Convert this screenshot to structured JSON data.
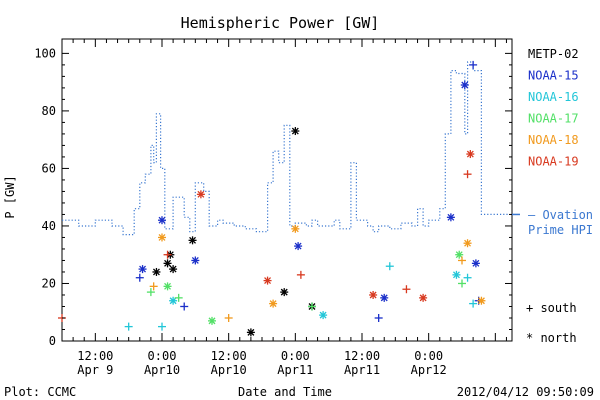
{
  "chart_data": {
    "type": "scatter",
    "title": "Hemispheric Power [GW]",
    "ylabel": "P [GW]",
    "xlabel": "Date and Time",
    "ylim": [
      0,
      105
    ],
    "xlim": [
      "2012-04-09 06:00",
      "2012-04-12 15:00"
    ],
    "yticks": [
      "0",
      "20",
      "40",
      "60",
      "80",
      "100"
    ],
    "xticks": [
      {
        "top": "12:00",
        "bottom": "Apr 9",
        "t": "2012-04-09 12:00"
      },
      {
        "top": "0:00",
        "bottom": "Apr10",
        "t": "2012-04-10 00:00"
      },
      {
        "top": "12:00",
        "bottom": "Apr10",
        "t": "2012-04-10 12:00"
      },
      {
        "top": "0:00",
        "bottom": "Apr11",
        "t": "2012-04-11 00:00"
      },
      {
        "top": "12:00",
        "bottom": "Apr11",
        "t": "2012-04-11 12:00"
      },
      {
        "top": "0:00",
        "bottom": "Apr12",
        "t": "2012-04-12 00:00"
      }
    ],
    "legend_position": "right",
    "legend": [
      {
        "name": "METP-02",
        "color": "#000000"
      },
      {
        "name": "NOAA-15",
        "color": "#1a2fc9"
      },
      {
        "name": "NOAA-16",
        "color": "#22c6d8"
      },
      {
        "name": "NOAA-17",
        "color": "#52e067"
      },
      {
        "name": "NOAA-18",
        "color": "#f19a1e"
      },
      {
        "name": "NOAA-19",
        "color": "#d8391f"
      }
    ],
    "ovation": {
      "label_line1": "– Ovation",
      "label_line2": "Prime HPI",
      "color": "#3b78d0",
      "current_value": 44,
      "steps": [
        [
          "2012-04-09 06:00",
          42
        ],
        [
          "2012-04-09 09:00",
          40
        ],
        [
          "2012-04-09 12:00",
          42
        ],
        [
          "2012-04-09 15:00",
          40
        ],
        [
          "2012-04-09 17:00",
          37
        ],
        [
          "2012-04-09 19:00",
          46
        ],
        [
          "2012-04-09 20:00",
          55
        ],
        [
          "2012-04-09 21:00",
          58
        ],
        [
          "2012-04-09 22:00",
          68
        ],
        [
          "2012-04-09 22:30",
          62
        ],
        [
          "2012-04-09 23:00",
          79
        ],
        [
          "2012-04-09 23:45",
          60
        ],
        [
          "2012-04-10 00:30",
          39
        ],
        [
          "2012-04-10 02:00",
          50
        ],
        [
          "2012-04-10 04:00",
          43
        ],
        [
          "2012-04-10 05:00",
          38
        ],
        [
          "2012-04-10 06:00",
          55
        ],
        [
          "2012-04-10 07:30",
          52
        ],
        [
          "2012-04-10 08:30",
          40
        ],
        [
          "2012-04-10 10:00",
          42
        ],
        [
          "2012-04-10 11:00",
          41
        ],
        [
          "2012-04-10 13:00",
          40
        ],
        [
          "2012-04-10 15:00",
          39
        ],
        [
          "2012-04-10 17:00",
          38
        ],
        [
          "2012-04-10 19:00",
          55
        ],
        [
          "2012-04-10 20:00",
          66
        ],
        [
          "2012-04-10 21:00",
          62
        ],
        [
          "2012-04-10 22:00",
          75
        ],
        [
          "2012-04-10 23:00",
          40
        ],
        [
          "2012-04-11 00:00",
          41
        ],
        [
          "2012-04-11 02:00",
          40
        ],
        [
          "2012-04-11 03:00",
          42
        ],
        [
          "2012-04-11 04:00",
          40
        ],
        [
          "2012-04-11 07:00",
          42
        ],
        [
          "2012-04-11 08:00",
          39
        ],
        [
          "2012-04-11 10:00",
          62
        ],
        [
          "2012-04-11 11:00",
          42
        ],
        [
          "2012-04-11 13:00",
          40
        ],
        [
          "2012-04-11 14:00",
          38
        ],
        [
          "2012-04-11 15:00",
          40
        ],
        [
          "2012-04-11 17:00",
          39
        ],
        [
          "2012-04-11 19:00",
          41
        ],
        [
          "2012-04-11 21:00",
          40
        ],
        [
          "2012-04-11 22:00",
          46
        ],
        [
          "2012-04-11 23:00",
          40
        ],
        [
          "2012-04-12 00:00",
          42
        ],
        [
          "2012-04-12 02:00",
          46
        ],
        [
          "2012-04-12 03:00",
          72
        ],
        [
          "2012-04-12 04:00",
          94
        ],
        [
          "2012-04-12 05:00",
          93
        ],
        [
          "2012-04-12 06:30",
          72
        ],
        [
          "2012-04-12 07:00",
          97
        ],
        [
          "2012-04-12 08:00",
          94
        ],
        [
          "2012-04-12 09:30",
          44
        ]
      ]
    },
    "series": [
      {
        "name": "METP-02",
        "color": "#000000",
        "south": [],
        "north": [
          [
            "2012-04-09 23:00",
            24
          ],
          [
            "2012-04-10 01:00",
            27
          ],
          [
            "2012-04-10 02:00",
            25
          ],
          [
            "2012-04-10 05:30",
            35
          ],
          [
            "2012-04-10 22:00",
            17
          ],
          [
            "2012-04-11 00:00",
            73
          ],
          [
            "2012-04-11 03:00",
            12
          ],
          [
            "2012-04-10 16:00",
            3
          ],
          [
            "2012-04-10 01:30",
            30
          ]
        ]
      },
      {
        "name": "NOAA-15",
        "color": "#1a2fc9",
        "south": [
          [
            "2012-04-09 20:00",
            22
          ],
          [
            "2012-04-10 04:00",
            12
          ],
          [
            "2012-04-11 15:00",
            8
          ],
          [
            "2012-04-12 08:00",
            96
          ],
          [
            "2012-04-12 09:00",
            14
          ]
        ],
        "north": [
          [
            "2012-04-09 20:30",
            25
          ],
          [
            "2012-04-10 00:00",
            42
          ],
          [
            "2012-04-10 06:00",
            28
          ],
          [
            "2012-04-11 00:30",
            33
          ],
          [
            "2012-04-12 04:00",
            43
          ],
          [
            "2012-04-12 06:30",
            89
          ],
          [
            "2012-04-12 08:30",
            27
          ],
          [
            "2012-04-11 16:00",
            15
          ]
        ]
      },
      {
        "name": "NOAA-16",
        "color": "#22c6d8",
        "south": [
          [
            "2012-04-09 18:00",
            5
          ],
          [
            "2012-04-10 00:00",
            5
          ],
          [
            "2012-04-11 17:00",
            26
          ],
          [
            "2012-04-12 07:00",
            22
          ],
          [
            "2012-04-12 08:00",
            13
          ]
        ],
        "north": [
          [
            "2012-04-10 02:00",
            14
          ],
          [
            "2012-04-11 05:00",
            9
          ],
          [
            "2012-04-12 05:00",
            23
          ]
        ]
      },
      {
        "name": "NOAA-17",
        "color": "#52e067",
        "south": [
          [
            "2012-04-09 22:00",
            17
          ],
          [
            "2012-04-10 03:00",
            15
          ],
          [
            "2012-04-11 03:00",
            12
          ],
          [
            "2012-04-12 06:00",
            20
          ]
        ],
        "north": [
          [
            "2012-04-10 01:00",
            19
          ],
          [
            "2012-04-10 09:00",
            7
          ],
          [
            "2012-04-12 05:30",
            30
          ]
        ]
      },
      {
        "name": "NOAA-18",
        "color": "#f19a1e",
        "south": [
          [
            "2012-04-09 22:30",
            19
          ],
          [
            "2012-04-10 12:00",
            8
          ],
          [
            "2012-04-12 06:00",
            28
          ]
        ],
        "north": [
          [
            "2012-04-10 00:00",
            36
          ],
          [
            "2012-04-10 20:00",
            13
          ],
          [
            "2012-04-11 00:00",
            39
          ],
          [
            "2012-04-12 07:00",
            34
          ],
          [
            "2012-04-12 09:30",
            14
          ]
        ]
      },
      {
        "name": "NOAA-19",
        "color": "#d8391f",
        "south": [
          [
            "2012-04-09 06:00",
            8
          ],
          [
            "2012-04-10 01:00",
            30
          ],
          [
            "2012-04-11 01:00",
            23
          ],
          [
            "2012-04-11 20:00",
            18
          ],
          [
            "2012-04-12 07:00",
            58
          ]
        ],
        "north": [
          [
            "2012-04-10 07:00",
            51
          ],
          [
            "2012-04-10 19:00",
            21
          ],
          [
            "2012-04-11 14:00",
            16
          ],
          [
            "2012-04-11 23:00",
            15
          ],
          [
            "2012-04-12 07:30",
            65
          ]
        ]
      }
    ]
  },
  "symbols": {
    "south_label": "+ south",
    "north_label": "* north"
  },
  "footer": {
    "plot_source": "Plot: CCMC",
    "timestamp": "2012/04/12 09:50:09"
  }
}
